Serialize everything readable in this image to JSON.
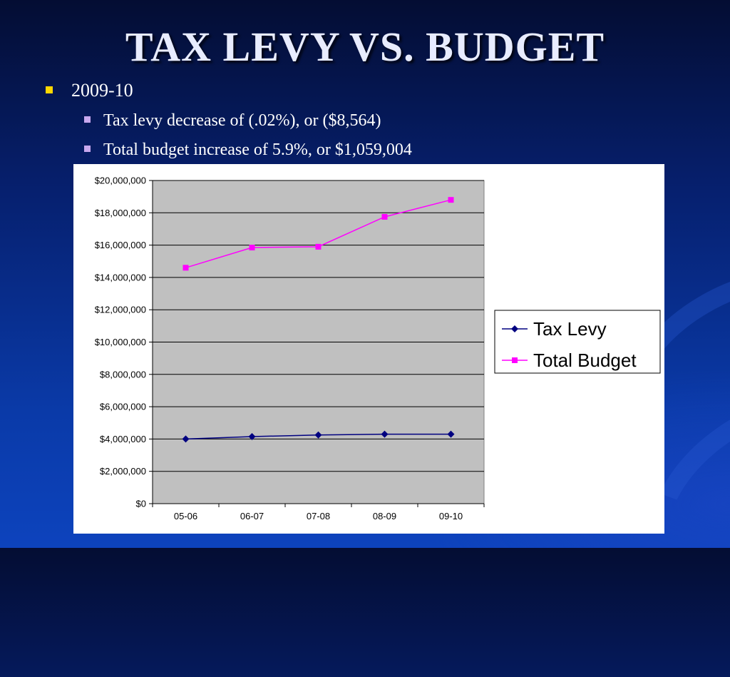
{
  "slide": {
    "title": "TAX LEVY VS. BUDGET",
    "bullet": "2009-10",
    "sub_bullets": [
      "Tax levy decrease of  (.02%), or ($8,564)",
      "Total budget increase of  5.9%, or $1,059,004"
    ]
  },
  "colors": {
    "tax_levy": "#000080",
    "total_budget": "#ff00ff",
    "plot_bg": "#c0c0c0",
    "bullet_1": "#ffd700",
    "bullet_2": "#c8a8ee"
  },
  "chart_data": {
    "type": "line",
    "title": "",
    "xlabel": "",
    "ylabel": "",
    "categories": [
      "05-06",
      "06-07",
      "07-08",
      "08-09",
      "09-10"
    ],
    "ylim": [
      0,
      20000000
    ],
    "ytick_values": [
      0,
      2000000,
      4000000,
      6000000,
      8000000,
      10000000,
      12000000,
      14000000,
      16000000,
      18000000,
      20000000
    ],
    "ytick_labels": [
      "$0",
      "$2,000,000",
      "$4,000,000",
      "$6,000,000",
      "$8,000,000",
      "$10,000,000",
      "$12,000,000",
      "$14,000,000",
      "$16,000,000",
      "$18,000,000",
      "$20,000,000"
    ],
    "grid": true,
    "legend_position": "right",
    "series": [
      {
        "name": "Tax Levy",
        "marker": "diamond",
        "values": [
          4000000,
          4150000,
          4250000,
          4300000,
          4300000
        ]
      },
      {
        "name": "Total Budget",
        "marker": "square",
        "values": [
          14600000,
          15850000,
          15900000,
          17750000,
          18800000
        ]
      }
    ]
  }
}
